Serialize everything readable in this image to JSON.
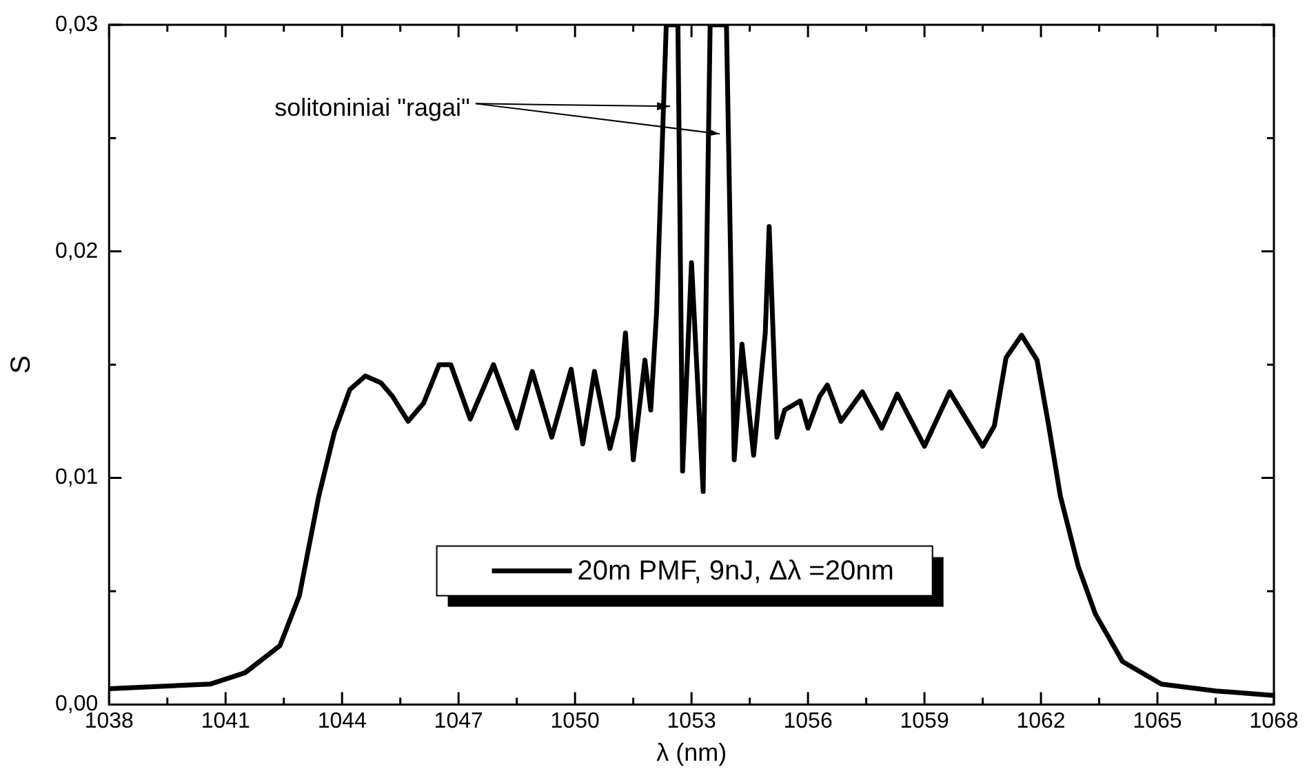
{
  "chart_data": {
    "type": "line",
    "xlabel": "λ (nm)",
    "ylabel": "S",
    "xlim": [
      1038,
      1068
    ],
    "xticks": [
      1038,
      {
        "value": 1039.5,
        "label": null
      },
      1041,
      {
        "value": 1042.5,
        "label": null
      },
      1044,
      {
        "value": 1045.5,
        "label": null
      },
      1047,
      {
        "value": 1048.5,
        "label": null
      },
      1050,
      {
        "value": 1051.5,
        "label": null
      },
      1053,
      {
        "value": 1054.5,
        "label": null
      },
      1056,
      {
        "value": 1057.5,
        "label": null
      },
      1059,
      {
        "value": 1060.5,
        "label": null
      },
      1062,
      {
        "value": 1063.5,
        "label": null
      },
      1065,
      {
        "value": 1066.5,
        "label": null
      },
      1068
    ],
    "ylim": [
      0,
      0.03
    ],
    "yticks": [
      {
        "value": 0,
        "label": "0,00"
      },
      {
        "value": 0.005,
        "label": null
      },
      {
        "value": 0.01,
        "label": "0,01"
      },
      {
        "value": 0.015,
        "label": null
      },
      {
        "value": 0.02,
        "label": "0,02"
      },
      {
        "value": 0.025,
        "label": null
      },
      {
        "value": 0.03,
        "label": "0,03"
      }
    ],
    "grid": false,
    "legend": "bottom",
    "marker": "none",
    "line_style": "solid",
    "annotations": [
      {
        "text": "solitoniniai \"ragai\"",
        "x": 1052.45,
        "y": 0.0264
      }
    ],
    "series": [
      {
        "name": "20m PMF, 9nJ, Δλ =20nm",
        "color": "#000000",
        "x": [
          1038,
          1040.6,
          1041.5,
          1042.4,
          1042.9,
          1043.4,
          1043.8,
          1044.2,
          1044.6,
          1045.0,
          1045.3,
          1045.7,
          1046.1,
          1046.5,
          1046.8,
          1047.3,
          1047.9,
          1048.5,
          1048.9,
          1049.4,
          1049.9,
          1050.2,
          1050.5,
          1050.9,
          1051.1,
          1051.3,
          1051.5,
          1051.8,
          1051.95,
          1052.1,
          1052.35,
          1052.65,
          1052.77,
          1053.0,
          1053.3,
          1053.48,
          1053.9,
          1054.1,
          1054.3,
          1054.6,
          1054.9,
          1055.0,
          1055.2,
          1055.4,
          1055.8,
          1056.0,
          1056.3,
          1056.5,
          1056.85,
          1057.4,
          1057.9,
          1058.3,
          1059.0,
          1059.65,
          1060.5,
          1060.8,
          1061.1,
          1061.5,
          1061.9,
          1062.2,
          1062.5,
          1062.96,
          1063.4,
          1064.1,
          1065.1,
          1066.5,
          1068
        ],
        "values": [
          0.0007,
          0.0009,
          0.0014,
          0.0026,
          0.0048,
          0.0092,
          0.012,
          0.0139,
          0.0145,
          0.0142,
          0.0136,
          0.0125,
          0.0133,
          0.015,
          0.015,
          0.0126,
          0.015,
          0.0122,
          0.0147,
          0.0118,
          0.0148,
          0.0115,
          0.0147,
          0.0113,
          0.0127,
          0.0164,
          0.0108,
          0.0152,
          0.013,
          0.0173,
          0.03,
          0.03,
          0.0103,
          0.0195,
          0.0094,
          0.03,
          0.03,
          0.0108,
          0.0159,
          0.011,
          0.0164,
          0.0211,
          0.0118,
          0.013,
          0.0134,
          0.0122,
          0.0136,
          0.0141,
          0.0125,
          0.0138,
          0.0122,
          0.0137,
          0.0114,
          0.0138,
          0.0114,
          0.0123,
          0.0153,
          0.0163,
          0.0152,
          0.0123,
          0.0092,
          0.0061,
          0.004,
          0.0019,
          0.0009,
          0.0006,
          0.0004
        ]
      }
    ]
  }
}
